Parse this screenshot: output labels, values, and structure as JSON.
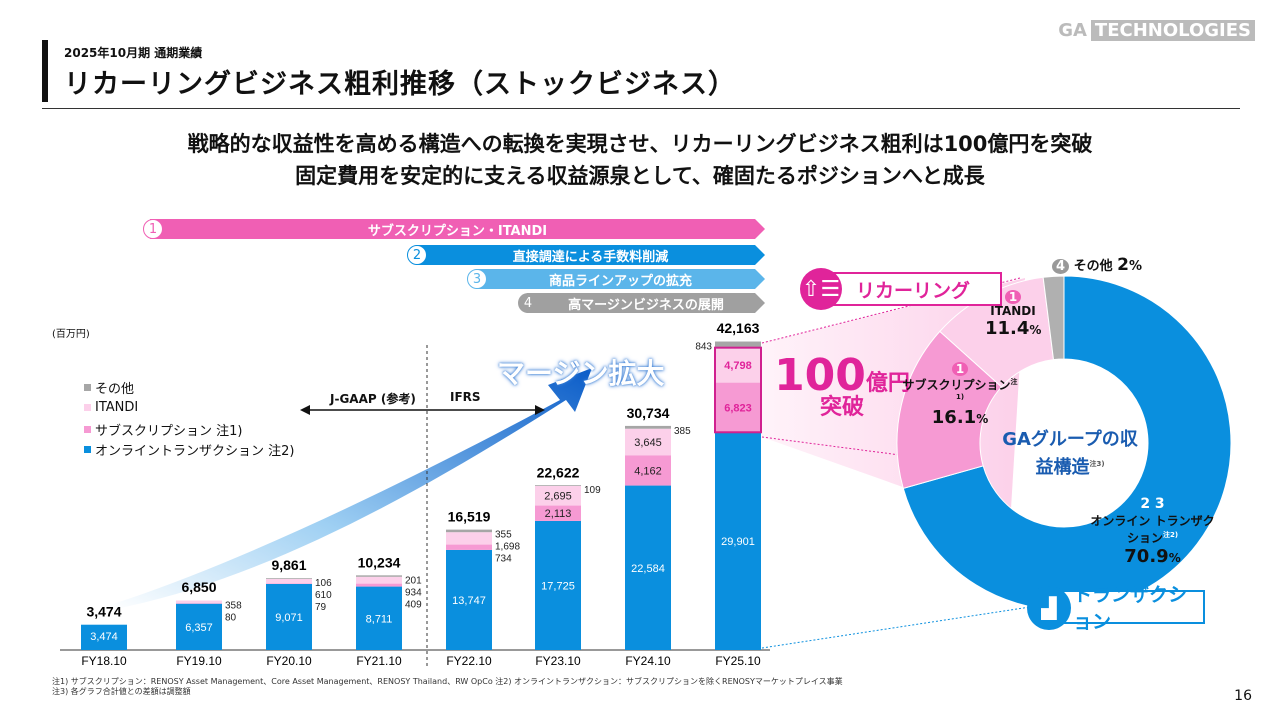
{
  "header": {
    "subtitle": "2025年10月期 通期業績",
    "title": "リカーリングビジネス粗利推移（ストックビジネス）",
    "logo_text_1": "GA",
    "logo_text_2": "TECHNOLOGIES",
    "page_number": "16"
  },
  "lead": [
    "戦略的な収益性を高める構造への転換を実現させ、リカーリングビジネス粗利は100億円を突破",
    "固定費用を安定的に支える収益源泉として、確固たるポジションへと成長"
  ],
  "banners": [
    {
      "num": "1",
      "label": "サブスクリプション・ITANDI",
      "color": "#f05fb4"
    },
    {
      "num": "2",
      "label": "直接調達による手数料削減",
      "color": "#0a8fde"
    },
    {
      "num": "3",
      "label": "商品ラインアップの拡充",
      "color": "#5bb5ea"
    },
    {
      "num": "4",
      "label": "高マージンビジネスの展開",
      "color": "#a0a0a0"
    }
  ],
  "annotations": {
    "unit": "(百万円)",
    "jgaap": "J-GAAP (参考)",
    "ifrs": "IFRS",
    "margin": "マージン拡大",
    "breakthrough_num": "100",
    "breakthrough_unit": "億円",
    "breakthrough_word": "突破",
    "recurring": "リカーリング",
    "transaction": "トランザクション"
  },
  "chart_data": [
    {
      "type": "bar",
      "stacked": true,
      "ylabel": "(百万円)",
      "categories": [
        "FY18.10",
        "FY19.10",
        "FY20.10",
        "FY21.10",
        "FY22.10",
        "FY23.10",
        "FY24.10",
        "FY25.10"
      ],
      "series": [
        {
          "name": "オンライントランザクション 注2)",
          "color": "#0a8fde",
          "values": [
            3474,
            6357,
            9071,
            8711,
            13747,
            17725,
            22584,
            29901
          ]
        },
        {
          "name": "サブスクリプション 注1)",
          "color": "#f69ad3",
          "values": [
            null,
            80,
            79,
            409,
            734,
            2113,
            4162,
            6823
          ]
        },
        {
          "name": "ITANDI",
          "color": "#fcd0ea",
          "values": [
            null,
            358,
            610,
            934,
            1698,
            2695,
            3645,
            4798
          ]
        },
        {
          "name": "その他",
          "color": "#a6a6a6",
          "values": [
            null,
            null,
            106,
            201,
            355,
            109,
            385,
            843
          ]
        }
      ],
      "totals": [
        3474,
        6850,
        9861,
        10234,
        16519,
        22622,
        30734,
        42163
      ],
      "legend_order": [
        "その他",
        "ITANDI",
        "サブスクリプション 注1)",
        "オンライントランザクション 注2)"
      ]
    },
    {
      "type": "pie",
      "donut": true,
      "title": "GAグループの収益構造",
      "title_note": "注3)",
      "slices": [
        {
          "label": "オンライン トランザクション",
          "note": "注2)",
          "nums": "2 3",
          "value": 70.9,
          "color": "#0a8fde"
        },
        {
          "label": "サブスクリプション",
          "note": "注1)",
          "nums": "1",
          "value": 16.1,
          "color": "#f69ad3"
        },
        {
          "label": "ITANDI",
          "nums": "1",
          "value": 11.4,
          "color": "#fcd0ea"
        },
        {
          "label": "その他",
          "nums": "4",
          "value": 2.0,
          "color": "#b0b0b0"
        }
      ]
    }
  ],
  "notes": [
    "注1) サブスクリプション：RENOSY Asset Management、Core Asset Management、RENOSY Thailand、RW OpCo 注2) オンライントランザクション：サブスクリプションを除くRENOSYマーケットプレイス事業",
    "注3) 各グラフ合計値との差額は調整額"
  ]
}
